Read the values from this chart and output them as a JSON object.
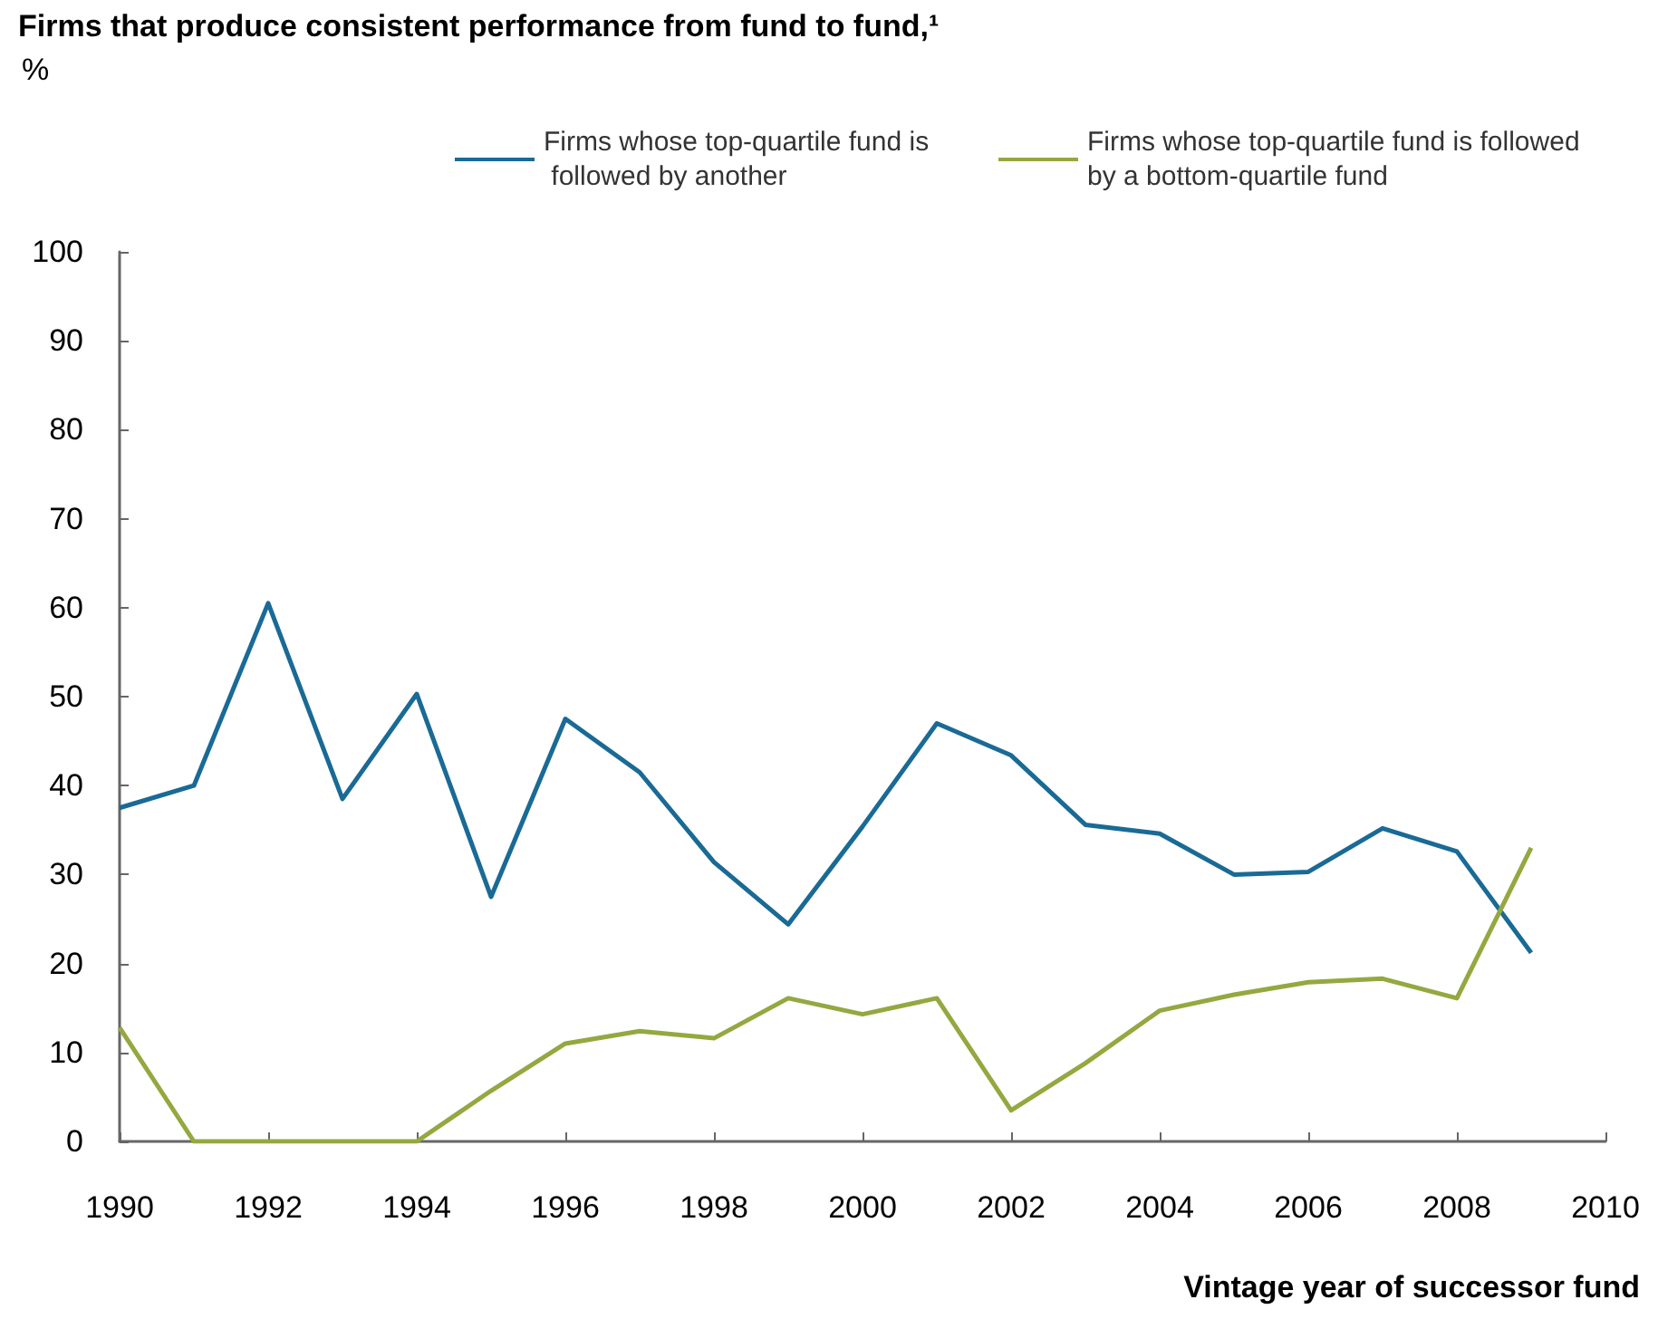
{
  "chart_data": {
    "type": "line",
    "title": "Firms that produce consistent performance from fund to fund,¹",
    "ylabel": "%",
    "xlabel": "Vintage year of successor fund",
    "x": [
      1990,
      1991,
      1992,
      1993,
      1994,
      1995,
      1996,
      1997,
      1998,
      1999,
      2000,
      2001,
      2002,
      2003,
      2004,
      2005,
      2006,
      2007,
      2008,
      2009
    ],
    "series": [
      {
        "name": "Firms whose top-quartile fund is followed by another",
        "color": "#1a6a96",
        "values": [
          37.5,
          40,
          60.5,
          38.5,
          50.3,
          27.5,
          47.5,
          41.5,
          31.4,
          24.4,
          35.4,
          47,
          43.4,
          35.6,
          34.6,
          30,
          30.3,
          35.2,
          32.6,
          21.2
        ]
      },
      {
        "name": "Firms whose top-quartile fund is followed by a bottom-quartile fund",
        "color": "#94a840",
        "values": [
          12.8,
          0,
          0,
          0,
          0,
          5.7,
          11,
          12.4,
          11.6,
          16.1,
          14.3,
          16.1,
          3.5,
          8.8,
          14.7,
          16.5,
          17.9,
          18.3,
          16.1,
          33
        ]
      }
    ],
    "xlim": [
      1990,
      2010
    ],
    "xticks": [
      1990,
      1992,
      1994,
      1996,
      1998,
      2000,
      2002,
      2004,
      2006,
      2008,
      2010
    ],
    "ylim": [
      0,
      100
    ],
    "yticks": [
      0,
      10,
      20,
      30,
      40,
      50,
      60,
      70,
      80,
      90,
      100
    ],
    "grid": false,
    "legend": "top right",
    "marker": "none",
    "line_style": "solid"
  }
}
